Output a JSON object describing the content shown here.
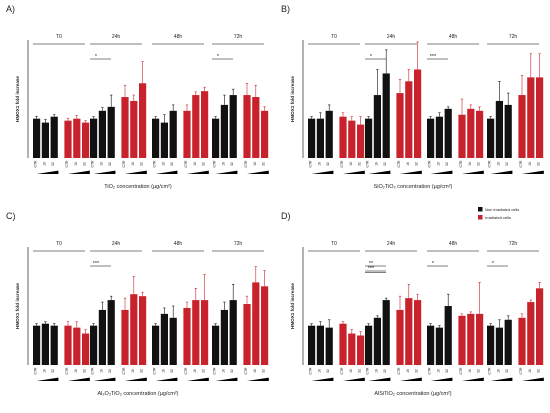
{
  "colors": {
    "non_irradiated": "#111111",
    "irradiated": "#c8232c",
    "axis": "#000000"
  },
  "legend": [
    {
      "label": "Non irradiated cells",
      "color": "#111111"
    },
    {
      "label": "Irradiated cells",
      "color": "#c8232c"
    }
  ],
  "chart_data": [
    {
      "type": "bar",
      "panel_label": "A)",
      "xlabel": "TiO₂ concentration (µg/cm²)",
      "ylabel": "HMOX1 fold increase",
      "groups": [
        "T0",
        "24h",
        "48h",
        "72h"
      ],
      "concentrations": [
        "CTR",
        "16",
        "32"
      ],
      "ylim": [
        0,
        3
      ],
      "series": [
        {
          "condition": "Non irradiated cells",
          "values": [
            [
              1.0,
              0.9,
              1.05
            ],
            [
              1.0,
              1.2,
              1.3
            ],
            [
              1.0,
              0.9,
              1.2
            ],
            [
              1.0,
              1.35,
              1.6
            ]
          ],
          "errors": [
            [
              0.06,
              0.08,
              0.05
            ],
            [
              0.05,
              0.08,
              0.3
            ],
            [
              0.05,
              0.2,
              0.15
            ],
            [
              0.05,
              0.25,
              0.15
            ]
          ]
        },
        {
          "condition": "Irradiated cells",
          "values": [
            [
              0.95,
              1.0,
              0.9
            ],
            [
              1.55,
              1.45,
              1.9
            ],
            [
              1.2,
              1.6,
              1.7
            ],
            [
              1.6,
              1.55,
              1.2
            ]
          ],
          "errors": [
            [
              0.06,
              0.08,
              0.05
            ],
            [
              0.3,
              0.15,
              0.55
            ],
            [
              0.15,
              0.08,
              0.1
            ],
            [
              0.3,
              0.3,
              0.1
            ]
          ]
        }
      ],
      "significance": [
        {
          "group": "24h",
          "label": "*",
          "lines": 1
        },
        {
          "group": "72h",
          "label": "*",
          "lines": 1
        }
      ]
    },
    {
      "type": "bar",
      "panel_label": "B)",
      "xlabel": "SiO₂TiO₂ concentration (µg/cm²)",
      "ylabel": "HMOX1 fold increase",
      "groups": [
        "T0",
        "24h",
        "48h",
        "72h"
      ],
      "concentrations": [
        "CTR",
        "16",
        "32"
      ],
      "ylim": [
        0,
        3
      ],
      "series": [
        {
          "condition": "Non irradiated cells",
          "values": [
            [
              1.0,
              1.0,
              1.2
            ],
            [
              1.0,
              1.6,
              2.15
            ],
            [
              1.0,
              1.05,
              1.25
            ],
            [
              1.0,
              1.45,
              1.35
            ]
          ],
          "errors": [
            [
              0.05,
              0.15,
              0.15
            ],
            [
              0.05,
              0.65,
              0.6
            ],
            [
              0.05,
              0.1,
              0.05
            ],
            [
              0.05,
              0.5,
              0.3
            ]
          ]
        },
        {
          "condition": "Irradiated cells",
          "values": [
            [
              1.05,
              0.95,
              0.85
            ],
            [
              1.65,
              1.95,
              2.25
            ],
            [
              1.1,
              1.25,
              1.2
            ],
            [
              1.6,
              2.05,
              2.05
            ]
          ],
          "errors": [
            [
              0.1,
              0.1,
              0.2
            ],
            [
              0.35,
              0.3,
              0.7
            ],
            [
              0.4,
              0.1,
              0.1
            ],
            [
              0.5,
              0.6,
              0.6
            ]
          ]
        }
      ],
      "significance": [
        {
          "group": "24h",
          "label": "*",
          "lines": 1
        },
        {
          "group": "48h",
          "label": "***",
          "lines": 1
        }
      ]
    },
    {
      "type": "bar",
      "panel_label": "C)",
      "xlabel": "Al₂O₃TiO₂ concentration (µg/cm²)",
      "ylabel": "HMOX1 fold increase",
      "groups": [
        "T0",
        "24h",
        "48h",
        "72h"
      ],
      "concentrations": [
        "CTR",
        "16",
        "32"
      ],
      "ylim": [
        0,
        3
      ],
      "series": [
        {
          "condition": "Non irradiated cells",
          "values": [
            [
              1.0,
              1.05,
              1.0
            ],
            [
              1.0,
              1.4,
              1.65
            ],
            [
              1.0,
              1.3,
              1.2
            ],
            [
              1.0,
              1.4,
              1.65
            ]
          ],
          "errors": [
            [
              0.05,
              0.05,
              0.05
            ],
            [
              0.05,
              0.2,
              0.1
            ],
            [
              0.05,
              0.15,
              0.3
            ],
            [
              0.05,
              0.2,
              0.4
            ]
          ]
        },
        {
          "condition": "Irradiated cells",
          "values": [
            [
              1.0,
              0.95,
              0.8
            ],
            [
              1.4,
              1.8,
              1.75
            ],
            [
              1.45,
              1.65,
              1.65
            ],
            [
              1.55,
              2.1,
              2.0
            ]
          ],
          "errors": [
            [
              0.1,
              0.15,
              0.1
            ],
            [
              0.3,
              0.45,
              0.1
            ],
            [
              0.15,
              0.3,
              0.65
            ],
            [
              0.2,
              0.4,
              0.4
            ]
          ]
        }
      ],
      "significance": [
        {
          "group": "24h",
          "label": "***",
          "lines": 1
        }
      ]
    },
    {
      "type": "bar",
      "panel_label": "D)",
      "xlabel": "AlSiTiO₂ concentration (µg/cm²)",
      "ylabel": "HMOX1 fold increase",
      "groups": [
        "T0",
        "24h",
        "48h",
        "72h"
      ],
      "concentrations": [
        "CTR",
        "16",
        "32"
      ],
      "ylim": [
        0,
        3
      ],
      "series": [
        {
          "condition": "Non irradiated cells",
          "values": [
            [
              1.0,
              1.0,
              0.95
            ],
            [
              1.0,
              1.2,
              1.65
            ],
            [
              1.0,
              0.95,
              1.5
            ],
            [
              1.0,
              0.95,
              1.15
            ]
          ],
          "errors": [
            [
              0.05,
              0.1,
              0.2
            ],
            [
              0.05,
              0.05,
              0.05
            ],
            [
              0.05,
              0.05,
              0.3
            ],
            [
              0.05,
              0.2,
              0.1
            ]
          ]
        },
        {
          "condition": "Irradiated cells",
          "values": [
            [
              1.05,
              0.8,
              0.75
            ],
            [
              1.4,
              1.7,
              1.65
            ],
            [
              1.25,
              1.3,
              1.3
            ],
            [
              1.2,
              1.6,
              1.95
            ]
          ],
          "errors": [
            [
              0.05,
              0.1,
              0.1
            ],
            [
              0.35,
              0.35,
              0.15
            ],
            [
              0.05,
              0.05,
              0.8
            ],
            [
              0.1,
              0.05,
              0.15
            ]
          ]
        }
      ],
      "significance": [
        {
          "group": "24h",
          "label": "**",
          "lines": 1
        },
        {
          "group": "24h",
          "label": "***",
          "lines": 2
        },
        {
          "group": "48h",
          "label": "*",
          "lines": 1
        },
        {
          "group": "72h",
          "label": "*",
          "lines": 1
        }
      ]
    }
  ]
}
